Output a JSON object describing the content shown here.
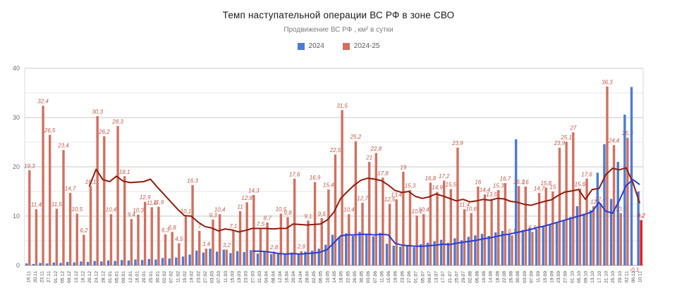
{
  "chart_data": {
    "type": "bar",
    "title": "Темп наступательной операции ВС РФ в зоне СВО",
    "subtitle": "Продвижение ВС РФ , км² в сутки",
    "legend_position": "top",
    "legend": [
      {
        "label": "2024",
        "color": "#4B7BD5"
      },
      {
        "label": "2024-25",
        "color": "#D2705F"
      }
    ],
    "ylim": [
      0,
      40
    ],
    "y_ticks": [
      0,
      10,
      20,
      30,
      40
    ],
    "grid_step": 5,
    "grid_on": true,
    "categories": [
      "16.11",
      "20.11",
      "23.11",
      "27.11",
      "01.12",
      "05.12",
      "09.12",
      "13.12",
      "16.12",
      "20.12",
      "24.12",
      "28.12",
      "01.01",
      "05.01",
      "09.01",
      "12.01",
      "16.01",
      "20.01",
      "25.01",
      "30.01",
      "02.02",
      "07.02",
      "11.02",
      "15.02",
      "19.02",
      "23.02",
      "27.02",
      "03.03",
      "07.03",
      "11.03",
      "15.03",
      "19.03",
      "23.03",
      "27.03",
      "31.03",
      "04.04",
      "08.04",
      "12.04",
      "16.04",
      "20.04",
      "24.04",
      "28.04",
      "02.05",
      "06.05",
      "10.05",
      "14.05",
      "18.05",
      "22.05",
      "26.05",
      "30.05",
      "03.06",
      "07.06",
      "11.06",
      "15.06",
      "19.06",
      "23.06",
      "27.06",
      "01.07",
      "05.07",
      "09.07",
      "13.07",
      "17.07",
      "21.07",
      "25.07",
      "29.07",
      "02.08",
      "06.08",
      "10.08",
      "14.08",
      "18.08",
      "22.08",
      "26.08",
      "30.08",
      "03.09",
      "07.09",
      "11.09",
      "15.09",
      "19.09",
      "23.09",
      "27.09",
      "01.10",
      "05.10",
      "09.10",
      "13.10",
      "17.10",
      "21.10",
      "25.10",
      "29.10",
      "02.11",
      "06.11",
      "10.11"
    ],
    "series": [
      {
        "name": "2024",
        "render": "bar",
        "color": "#4B7BD5",
        "values": [
          0.4,
          0.3,
          0.5,
          0.4,
          0.6,
          0.5,
          0.7,
          0.6,
          0.8,
          0.7,
          0.9,
          0.8,
          1.0,
          0.9,
          1.1,
          1.0,
          1.2,
          1.1,
          1.3,
          1.2,
          1.5,
          1.4,
          1.6,
          1.8,
          2.2,
          3.0,
          2.6,
          3.4,
          2.8,
          3.2,
          2.5,
          2.9,
          2.7,
          3.1,
          2.4,
          2.7,
          2.3,
          2.5,
          2.2,
          2.6,
          2.4,
          2.8,
          3.0,
          3.4,
          4.2,
          6.2,
          5.8,
          6.5,
          6.0,
          6.8,
          6.3,
          5.9,
          6.6,
          4.4,
          4.0,
          3.8,
          4.1,
          3.7,
          4.3,
          4.6,
          4.9,
          5.2,
          4.6,
          5.5,
          5.1,
          5.8,
          6.1,
          6.4,
          6.0,
          6.7,
          7.0,
          6.5,
          25.6,
          7.2,
          7.6,
          7.4,
          8.0,
          8.4,
          8.8,
          9.2,
          9.8,
          12.0,
          10.5,
          11.2,
          18.8,
          24.6,
          13.5,
          21.0,
          30.6,
          36.2,
          15.0
        ]
      },
      {
        "name": "2024-25",
        "render": "bar",
        "color": "#D2705F",
        "label_color": "#C05A49",
        "show_data_labels": true,
        "values": [
          19.3,
          11.4,
          32.4,
          26.5,
          11.5,
          23.4,
          14.7,
          10.5,
          6.2,
          16.1,
          30.3,
          26.2,
          10.4,
          28.3,
          18.1,
          9.4,
          10.3,
          12.9,
          11.8,
          11.9,
          6.3,
          6.8,
          4.5,
          10.1,
          16.3,
          7.0,
          3.4,
          9.3,
          10.4,
          3.2,
          7.1,
          11.0,
          12.8,
          14.3,
          7.5,
          8.7,
          2.8,
          10.5,
          9.8,
          17.6,
          2.9,
          9.1,
          16.9,
          9.6,
          15.4,
          22.5,
          31.5,
          10.4,
          25.2,
          12.7,
          21.0,
          22.8,
          17.8,
          12.5,
          13.4,
          19.0,
          15.3,
          10.1,
          10.4,
          16.8,
          14.9,
          17.2,
          15.5,
          23.9,
          11.4,
          10.6,
          16.0,
          14.4,
          13.5,
          15.3,
          16.7,
          6.1,
          16.1,
          16.0,
          6.8,
          14.7,
          15.8,
          15.0,
          23.9,
          25.1,
          27.0,
          15.6,
          17.6,
          12.0,
          12.6,
          36.3,
          24.4,
          10.6,
          25.9,
          -0.1,
          9.2
        ]
      },
      {
        "name": "2024 trend",
        "render": "line",
        "color": "#2E3BCE",
        "values": [
          null,
          null,
          null,
          null,
          null,
          null,
          null,
          null,
          null,
          null,
          null,
          null,
          null,
          null,
          null,
          null,
          null,
          null,
          null,
          null,
          null,
          null,
          null,
          null,
          null,
          null,
          null,
          null,
          null,
          null,
          null,
          null,
          null,
          2.9,
          2.9,
          2.8,
          2.6,
          2.4,
          2.3,
          2.4,
          2.3,
          2.4,
          2.5,
          2.7,
          3.2,
          4.6,
          6.0,
          6.2,
          6.2,
          6.3,
          6.3,
          6.2,
          6.3,
          6.2,
          4.5,
          4.1,
          4.0,
          3.9,
          3.9,
          4.0,
          4.1,
          4.3,
          4.2,
          4.5,
          4.7,
          4.9,
          5.1,
          5.4,
          5.6,
          5.9,
          6.2,
          6.4,
          6.7,
          7.0,
          7.3,
          7.7,
          8.0,
          8.4,
          8.8,
          9.2,
          9.6,
          10.0,
          10.4,
          10.9,
          12.8,
          11.0,
          10.6,
          13.2,
          16.2,
          17.4,
          16.4
        ]
      },
      {
        "name": "2024-25 trend",
        "render": "line",
        "color": "#8F1D0E",
        "values": [
          null,
          null,
          null,
          null,
          null,
          null,
          null,
          null,
          null,
          16.0,
          19.5,
          17.4,
          17.0,
          18.1,
          17.1,
          16.8,
          16.9,
          17.0,
          17.5,
          15.9,
          14.4,
          12.9,
          11.4,
          10.1,
          10.0,
          8.8,
          7.9,
          7.6,
          7.0,
          7.4,
          7.2,
          6.8,
          7.1,
          7.5,
          7.5,
          7.5,
          7.4,
          7.5,
          7.5,
          8.4,
          8.3,
          8.2,
          8.3,
          8.4,
          9.2,
          10.8,
          13.6,
          15.0,
          16.3,
          17.3,
          17.7,
          17.5,
          17.2,
          16.3,
          15.2,
          14.8,
          15.0,
          14.0,
          13.6,
          13.9,
          14.5,
          14.1,
          13.6,
          13.1,
          13.4,
          12.9,
          13.1,
          13.4,
          13.2,
          13.6,
          13.5,
          13.0,
          12.8,
          12.4,
          12.2,
          12.6,
          13.0,
          13.3,
          14.2,
          14.9,
          15.1,
          15.4,
          13.4,
          15.4,
          15.6,
          18.4,
          19.7,
          19.4,
          19.8,
          16.8,
          12.6
        ]
      }
    ],
    "highlight_last_bar": {
      "category": "10.11",
      "series": "2024-25",
      "value": 9.2,
      "color": "#E91414",
      "label": "9,2"
    },
    "negative_value_label": {
      "category": "06.11",
      "series": "2024-25",
      "label": "-0,1"
    },
    "decimal_separator": ","
  }
}
